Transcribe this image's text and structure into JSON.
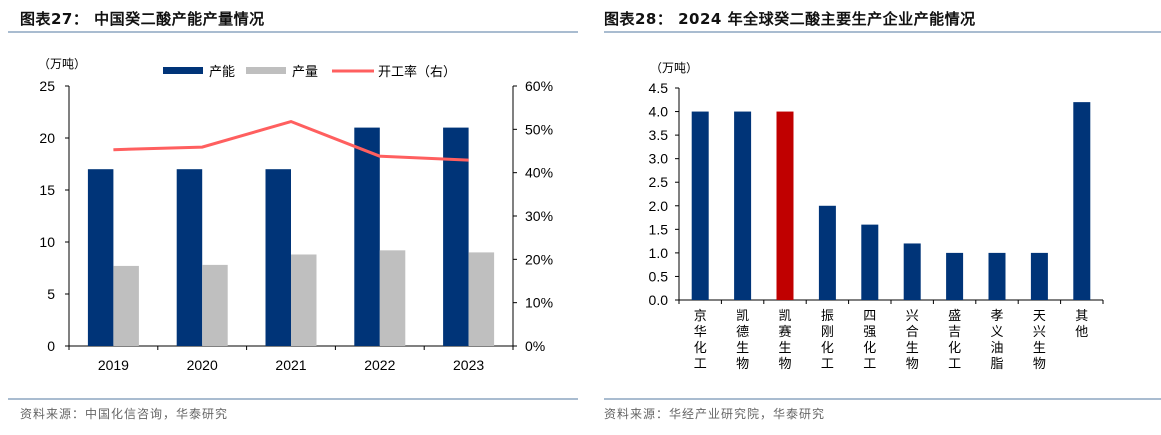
{
  "panels": [
    {
      "title": "图表27： 中国癸二酸产能产量情况",
      "source": "资料来源：中国化信咨询，华泰研究"
    },
    {
      "title": "图表28： 2024 年全球癸二酸主要生产企业产能情况",
      "source": "资料来源：华经产业研究院，华泰研究"
    }
  ],
  "colors": {
    "navy": "#003478",
    "gray": "#bfbfbf",
    "red_line": "#ff5f5f",
    "highlight": "#c00000",
    "rule": "#a9bcd0"
  },
  "chart_data": [
    {
      "type": "bar",
      "title": "中国癸二酸产能产量情况",
      "ylabel": "（万吨）",
      "y2label": "",
      "categories": [
        "2019",
        "2020",
        "2021",
        "2022",
        "2023"
      ],
      "ylim": [
        0,
        25
      ],
      "yticks": [
        "0",
        "5",
        "10",
        "15",
        "20",
        "25"
      ],
      "y2lim": [
        0,
        60
      ],
      "y2ticks": [
        "0%",
        "10%",
        "20%",
        "30%",
        "40%",
        "50%",
        "60%"
      ],
      "legend_position": "top",
      "series": [
        {
          "name": "产能",
          "type": "bar",
          "axis": "left",
          "values": [
            17,
            17,
            17,
            21,
            21
          ]
        },
        {
          "name": "产量",
          "type": "bar",
          "axis": "left",
          "values": [
            7.7,
            7.8,
            8.8,
            9.2,
            9.0
          ]
        },
        {
          "name": "开工率（右）",
          "type": "line",
          "axis": "right",
          "values": [
            45.3,
            45.9,
            51.8,
            43.8,
            42.9
          ]
        }
      ],
      "grid": false
    },
    {
      "type": "bar",
      "title": "2024 年全球癸二酸主要生产企业产能情况",
      "ylabel": "（万吨）",
      "categories": [
        "京华化工",
        "凯德生物",
        "凯赛生物",
        "振刚化工",
        "四强化工",
        "兴合生物",
        "盛吉化工",
        "孝义油脂",
        "天兴生物",
        "其他"
      ],
      "values": [
        4.0,
        4.0,
        4.0,
        2.0,
        1.6,
        1.2,
        1.0,
        1.0,
        1.0,
        4.2
      ],
      "highlight_index": 2,
      "ylim": [
        0,
        4.5
      ],
      "yticks": [
        "0.0",
        "0.5",
        "1.0",
        "1.5",
        "2.0",
        "2.5",
        "3.0",
        "3.5",
        "4.0",
        "4.5"
      ],
      "grid": false
    }
  ]
}
